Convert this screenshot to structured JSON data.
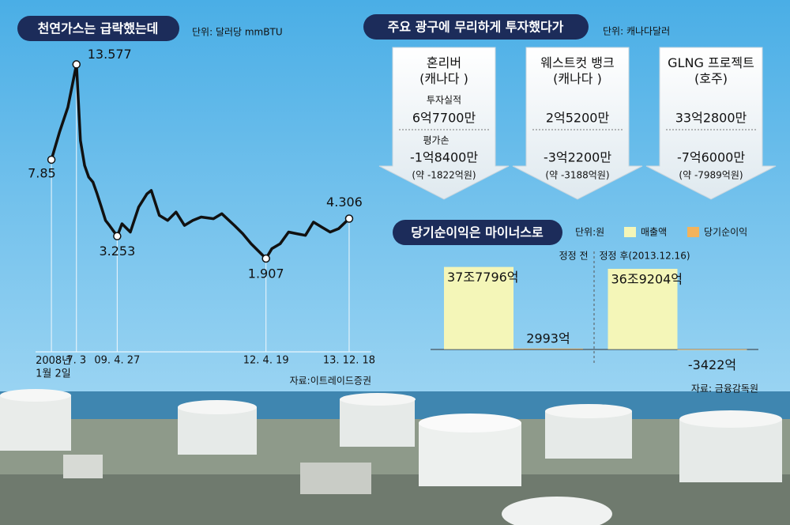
{
  "chart_data": [
    {
      "type": "line",
      "title": "천연가스는 급락했는데",
      "unit": "단위: 달러당 mmBTU",
      "source": "자료:이트레이드증권",
      "x": [
        "2008-01-02",
        "2008-03",
        "2008-05",
        "2008-07-03",
        "2008-08",
        "2008-09",
        "2008-10",
        "2008-11",
        "2008-12",
        "2009-01",
        "2009-02",
        "2009-03",
        "2009-04-27",
        "2009-06",
        "2009-08",
        "2009-10",
        "2009-12",
        "2010-01",
        "2010-03",
        "2010-05",
        "2010-07",
        "2010-09",
        "2010-11",
        "2011-01",
        "2011-04",
        "2011-06",
        "2011-09",
        "2011-11",
        "2012-01",
        "2012-04-19",
        "2012-06",
        "2012-08",
        "2012-10",
        "2012-12",
        "2013-02",
        "2013-04",
        "2013-06",
        "2013-08",
        "2013-10",
        "2013-12-18"
      ],
      "values": [
        7.85,
        9.5,
        11,
        13.577,
        9.0,
        7.5,
        6.8,
        6.5,
        5.8,
        5.0,
        4.2,
        3.9,
        3.253,
        4.0,
        3.5,
        5.0,
        5.8,
        6.0,
        4.5,
        4.2,
        4.7,
        3.9,
        4.2,
        4.4,
        4.3,
        4.6,
        3.9,
        3.4,
        2.8,
        1.907,
        2.5,
        2.8,
        3.5,
        3.4,
        3.3,
        4.1,
        3.8,
        3.5,
        3.7,
        4.306
      ],
      "color": "#111111",
      "xlim": [
        "2007-09-08",
        "2014-05-29"
      ],
      "ylim": [
        -3.7,
        14.5
      ],
      "xticks": [
        {
          "value": "2008-01-02",
          "label": "2008년\n1월 2일"
        },
        {
          "value": "2008-07-03",
          "label": "7. 3"
        },
        {
          "value": "2009-04-27",
          "label": "09. 4. 27"
        },
        {
          "value": "2012-04-19",
          "label": "12. 4. 19"
        },
        {
          "value": "2013-12-18",
          "label": "13. 12. 18"
        }
      ]
    },
    {
      "type": "bar",
      "title": "당기순이익은 마이너스로",
      "unit": "단위:원",
      "source": "자료: 금융감독원",
      "categories": [
        "정정 전",
        "정정 후(2013.12.16)"
      ],
      "series": [
        {
          "name": "매출액",
          "color": "#f4f6b8",
          "values": [
            377796,
            369204
          ],
          "value_labels": [
            "37조7796억",
            "36조9204억"
          ]
        },
        {
          "name": "당기순이익",
          "color": "#f2b35c",
          "values": [
            2993,
            -3422
          ],
          "value_labels": [
            "2993억",
            "-3422억"
          ]
        }
      ],
      "ylim": [
        -30000,
        420000
      ]
    }
  ],
  "investment": {
    "title": "주요 광구에 무리하게 투자했다가",
    "unit": "단위: 캐나다달러",
    "row_labels": [
      "투자실적",
      "평가손"
    ],
    "projects": [
      {
        "name": "혼리버\n(캐나다 )",
        "investment": "6억7700만",
        "loss": "-1억8400만",
        "loss_krw": "(약 -1822억원)"
      },
      {
        "name": "웨스트컷 뱅크\n(캐나다 )",
        "investment": "2억5200만",
        "loss": "-3억2200만",
        "loss_krw": "(약 -3188억원)"
      },
      {
        "name": "GLNG 프로젝트\n(호주)",
        "investment": "33억2800만",
        "loss": "-7억6000만",
        "loss_krw": "(약 -7989억원)"
      }
    ]
  }
}
